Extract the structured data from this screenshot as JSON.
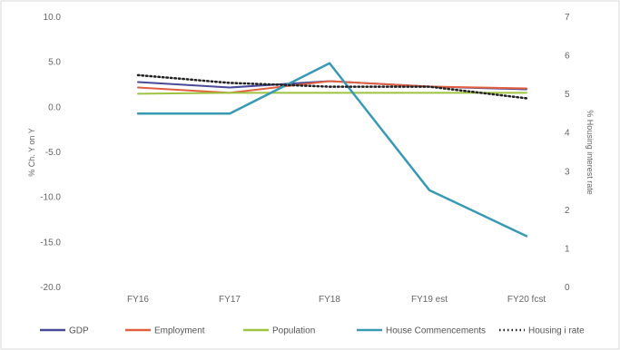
{
  "chart_data": {
    "type": "line",
    "categories": [
      "FY16",
      "FY17",
      "FY18",
      "FY19 est",
      "FY20 fcst"
    ],
    "ylabel": "% Ch. Y on Y",
    "y2label": "% Housing interest rate",
    "ylim": [
      -20,
      10
    ],
    "y2lim": [
      0,
      7
    ],
    "yticks": [
      "10.0",
      "5.0",
      "0.0",
      "-5.0",
      "-10.0",
      "-15.0",
      "-20.0"
    ],
    "y2ticks": [
      "7",
      "6",
      "5",
      "4",
      "3",
      "2",
      "1",
      "0"
    ],
    "grid": false,
    "legend_position": "bottom",
    "series": [
      {
        "name": "GDP",
        "axis": "left",
        "style": "solid",
        "color": "#4a4a9a",
        "values": [
          2.8,
          2.2,
          2.9,
          2.3,
          2.0
        ]
      },
      {
        "name": "Employment",
        "axis": "left",
        "style": "solid",
        "color": "#e06040",
        "values": [
          2.2,
          1.6,
          2.9,
          2.3,
          2.1
        ]
      },
      {
        "name": "Population",
        "axis": "left",
        "style": "solid",
        "color": "#9dc340",
        "values": [
          1.5,
          1.6,
          1.6,
          1.6,
          1.6
        ]
      },
      {
        "name": "House Commencements",
        "axis": "left",
        "style": "solid",
        "color": "#3a9ab5",
        "values": [
          -0.7,
          -0.7,
          4.9,
          -9.2,
          -14.3
        ]
      },
      {
        "name": "Housing i rate",
        "axis": "right",
        "style": "dotted",
        "color": "#222222",
        "values": [
          5.5,
          5.3,
          5.2,
          5.2,
          4.9
        ]
      }
    ]
  }
}
